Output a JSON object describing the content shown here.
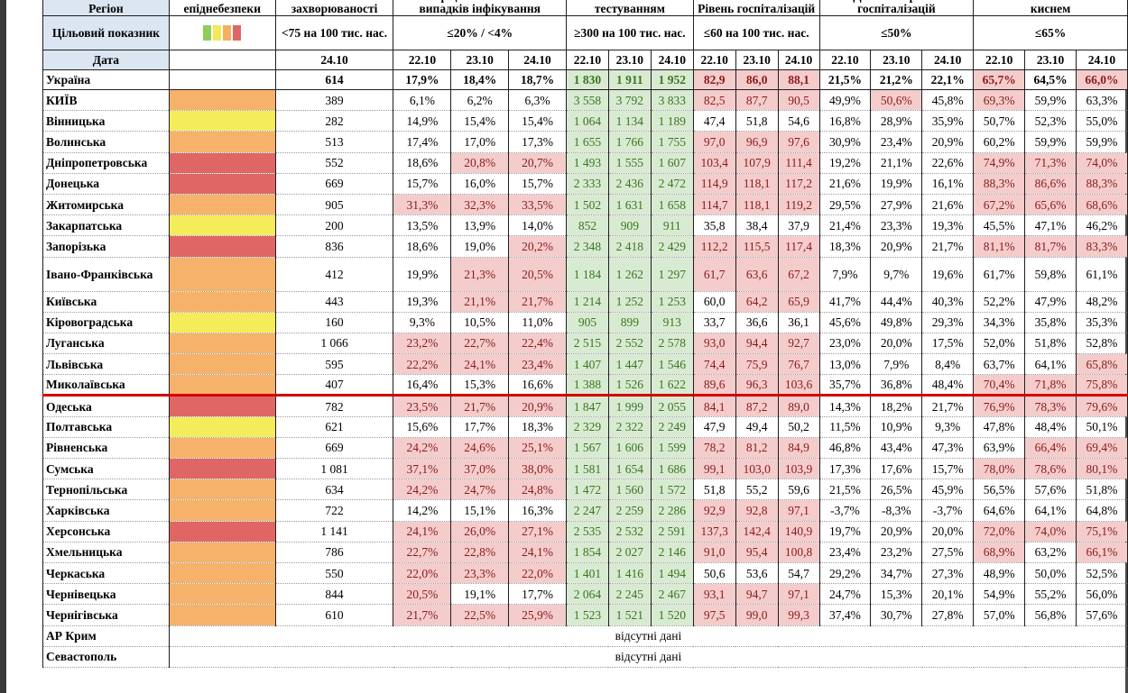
{
  "header": {
    "region_label": "Регіон",
    "level_label": "Рівень епіднебезпеки",
    "morbidity_label": "Рівень захворюваності",
    "detection_label": "Коефіцієнт виявлення випадків інфікування",
    "testing_label": "Охоплення тестуванням",
    "hosp_label": "Рівень госпіталізацій",
    "hosp_dyn_label": "Динаміка рівня госпіталізацій",
    "oxygen_label": "Завантаженість ліжок з киснем",
    "target_label": "Цільовий показник",
    "targets": {
      "morbidity": "<75 на 100 тис. нас.",
      "detection": "≤20% / <4%",
      "testing": "≥300 на 100 тис. нас.",
      "hosp": "≤60 на 100 тис. нас.",
      "hosp_dyn": "≤50%",
      "oxygen": "≤65%"
    },
    "date_label": "Дата",
    "dates": {
      "morbidity": "24.10",
      "detection": [
        "22.10",
        "23.10",
        "24.10"
      ],
      "testing": [
        "22.10",
        "23.10",
        "24.10"
      ],
      "hosp": [
        "22.10",
        "23.10",
        "24.10"
      ],
      "hosp_dyn": [
        "22.10",
        "23.10",
        "24.10"
      ],
      "oxygen": [
        "22.10",
        "23.10",
        "24.10"
      ]
    }
  },
  "legend_colors": [
    "#8fce5a",
    "#f3ea5a",
    "#f4b05e",
    "#e06666"
  ],
  "level_colors": {
    "yellow": "#f5ec5b",
    "orange": "#f6b26b",
    "red": "#e06666"
  },
  "ukraine": {
    "name": "Україна",
    "morbidity": "614",
    "detection": [
      "17,9%",
      "18,4%",
      "18,7%"
    ],
    "testing": [
      "1 830",
      "1 911",
      "1 952"
    ],
    "hosp": [
      "82,9",
      "86,0",
      "88,1"
    ],
    "hosp_dyn": [
      "21,5%",
      "21,2%",
      "22,1%"
    ],
    "oxygen": [
      "65,7%",
      "64,5%",
      "66,0%"
    ]
  },
  "regions": [
    {
      "name": "КИЇВ",
      "level": "orange",
      "morbidity": "389",
      "detection": [
        "6,1%",
        "6,2%",
        "6,3%"
      ],
      "testing": [
        "3 558",
        "3 792",
        "3 833"
      ],
      "hosp": [
        "82,5",
        "87,7",
        "90,5"
      ],
      "hosp_dyn": [
        "49,9%",
        "50,6%",
        "45,8%"
      ],
      "oxygen": [
        "69,3%",
        "59,9%",
        "63,3%"
      ]
    },
    {
      "name": "Вінницька",
      "level": "yellow",
      "morbidity": "282",
      "detection": [
        "14,9%",
        "15,4%",
        "15,4%"
      ],
      "testing": [
        "1 064",
        "1 134",
        "1 189"
      ],
      "hosp": [
        "47,4",
        "51,8",
        "54,6"
      ],
      "hosp_dyn": [
        "16,8%",
        "28,9%",
        "35,9%"
      ],
      "oxygen": [
        "50,7%",
        "52,3%",
        "55,0%"
      ]
    },
    {
      "name": "Волинська",
      "level": "orange",
      "morbidity": "513",
      "detection": [
        "17,4%",
        "17,0%",
        "17,3%"
      ],
      "testing": [
        "1 655",
        "1 766",
        "1 755"
      ],
      "hosp": [
        "97,0",
        "96,9",
        "97,6"
      ],
      "hosp_dyn": [
        "30,9%",
        "23,4%",
        "20,9%"
      ],
      "oxygen": [
        "60,2%",
        "59,9%",
        "59,9%"
      ]
    },
    {
      "name": "Дніпропетровська",
      "level": "red",
      "morbidity": "552",
      "detection": [
        "18,6%",
        "20,8%",
        "20,7%"
      ],
      "testing": [
        "1 493",
        "1 555",
        "1 607"
      ],
      "hosp": [
        "103,4",
        "107,9",
        "111,4"
      ],
      "hosp_dyn": [
        "19,2%",
        "21,1%",
        "22,6%"
      ],
      "oxygen": [
        "74,9%",
        "71,3%",
        "74,0%"
      ]
    },
    {
      "name": "Донецька",
      "level": "red",
      "morbidity": "669",
      "detection": [
        "15,7%",
        "16,0%",
        "15,7%"
      ],
      "testing": [
        "2 333",
        "2 436",
        "2 472"
      ],
      "hosp": [
        "114,9",
        "118,1",
        "117,2"
      ],
      "hosp_dyn": [
        "21,6%",
        "19,9%",
        "16,1%"
      ],
      "oxygen": [
        "88,3%",
        "86,6%",
        "88,3%"
      ]
    },
    {
      "name": "Житомирська",
      "level": "orange",
      "morbidity": "905",
      "detection": [
        "31,3%",
        "32,3%",
        "33,5%"
      ],
      "testing": [
        "1 502",
        "1 631",
        "1 658"
      ],
      "hosp": [
        "114,7",
        "118,1",
        "119,2"
      ],
      "hosp_dyn": [
        "29,5%",
        "27,9%",
        "21,6%"
      ],
      "oxygen": [
        "67,2%",
        "65,6%",
        "68,6%"
      ]
    },
    {
      "name": "Закарпатська",
      "level": "yellow",
      "morbidity": "200",
      "detection": [
        "13,5%",
        "13,9%",
        "14,0%"
      ],
      "testing": [
        "852",
        "909",
        "911"
      ],
      "hosp": [
        "35,8",
        "38,4",
        "37,9"
      ],
      "hosp_dyn": [
        "21,4%",
        "23,3%",
        "19,3%"
      ],
      "oxygen": [
        "45,5%",
        "47,1%",
        "46,2%"
      ]
    },
    {
      "name": "Запорізька",
      "level": "red",
      "morbidity": "836",
      "detection": [
        "18,6%",
        "19,0%",
        "20,2%"
      ],
      "testing": [
        "2 348",
        "2 418",
        "2 429"
      ],
      "hosp": [
        "112,2",
        "115,5",
        "117,4"
      ],
      "hosp_dyn": [
        "18,3%",
        "20,9%",
        "21,7%"
      ],
      "oxygen": [
        "81,1%",
        "81,7%",
        "83,3%"
      ]
    },
    {
      "name": "Івано-Франківська",
      "level": "orange",
      "morbidity": "412",
      "detection": [
        "19,9%",
        "21,3%",
        "20,5%"
      ],
      "testing": [
        "1 184",
        "1 262",
        "1 297"
      ],
      "hosp": [
        "61,7",
        "63,6",
        "67,2"
      ],
      "hosp_dyn": [
        "7,9%",
        "9,7%",
        "19,6%"
      ],
      "oxygen": [
        "61,7%",
        "59,8%",
        "61,1%"
      ]
    },
    {
      "name": "Київська",
      "level": "orange",
      "morbidity": "443",
      "detection": [
        "19,3%",
        "21,1%",
        "21,7%"
      ],
      "testing": [
        "1 214",
        "1 252",
        "1 253"
      ],
      "hosp": [
        "60,0",
        "64,2",
        "65,9"
      ],
      "hosp_dyn": [
        "41,7%",
        "44,4%",
        "40,3%"
      ],
      "oxygen": [
        "52,2%",
        "47,9%",
        "48,2%"
      ]
    },
    {
      "name": "Кіровоградська",
      "level": "yellow",
      "morbidity": "160",
      "detection": [
        "9,3%",
        "10,5%",
        "11,0%"
      ],
      "testing": [
        "905",
        "899",
        "913"
      ],
      "hosp": [
        "33,7",
        "36,6",
        "36,1"
      ],
      "hosp_dyn": [
        "45,6%",
        "49,8%",
        "29,3%"
      ],
      "oxygen": [
        "34,3%",
        "35,8%",
        "35,3%"
      ]
    },
    {
      "name": "Луганська",
      "level": "orange",
      "morbidity": "1 066",
      "detection": [
        "23,2%",
        "22,7%",
        "22,4%"
      ],
      "testing": [
        "2 515",
        "2 552",
        "2 578"
      ],
      "hosp": [
        "93,0",
        "94,4",
        "92,7"
      ],
      "hosp_dyn": [
        "23,0%",
        "20,0%",
        "17,5%"
      ],
      "oxygen": [
        "52,0%",
        "51,8%",
        "52,8%"
      ]
    },
    {
      "name": "Львівська",
      "level": "orange",
      "morbidity": "595",
      "detection": [
        "22,2%",
        "24,1%",
        "23,4%"
      ],
      "testing": [
        "1 407",
        "1 447",
        "1 546"
      ],
      "hosp": [
        "74,4",
        "75,9",
        "76,7"
      ],
      "hosp_dyn": [
        "13,0%",
        "7,9%",
        "8,4%"
      ],
      "oxygen": [
        "63,7%",
        "64,1%",
        "65,8%"
      ]
    },
    {
      "name": "Миколаївська",
      "level": "orange",
      "morbidity": "407",
      "detection": [
        "16,4%",
        "15,3%",
        "16,6%"
      ],
      "testing": [
        "1 388",
        "1 526",
        "1 622"
      ],
      "hosp": [
        "89,6",
        "96,3",
        "103,6"
      ],
      "hosp_dyn": [
        "35,7%",
        "36,8%",
        "48,4%"
      ],
      "oxygen": [
        "70,4%",
        "71,8%",
        "75,8%"
      ]
    },
    {
      "name": "Одеська",
      "level": "red",
      "morbidity": "782",
      "detection": [
        "23,5%",
        "21,7%",
        "20,9%"
      ],
      "testing": [
        "1 847",
        "1 999",
        "2 055"
      ],
      "hosp": [
        "84,1",
        "87,2",
        "89,0"
      ],
      "hosp_dyn": [
        "14,3%",
        "18,2%",
        "21,7%"
      ],
      "oxygen": [
        "76,9%",
        "78,3%",
        "79,6%"
      ]
    },
    {
      "name": "Полтавська",
      "level": "yellow",
      "morbidity": "621",
      "detection": [
        "15,6%",
        "17,7%",
        "18,3%"
      ],
      "testing": [
        "2 329",
        "2 322",
        "2 249"
      ],
      "hosp": [
        "47,9",
        "49,4",
        "50,2"
      ],
      "hosp_dyn": [
        "11,5%",
        "10,9%",
        "9,3%"
      ],
      "oxygen": [
        "47,8%",
        "48,4%",
        "50,1%"
      ]
    },
    {
      "name": "Рівненська",
      "level": "orange",
      "morbidity": "669",
      "detection": [
        "24,2%",
        "24,6%",
        "25,1%"
      ],
      "testing": [
        "1 567",
        "1 606",
        "1 599"
      ],
      "hosp": [
        "78,2",
        "81,2",
        "84,9"
      ],
      "hosp_dyn": [
        "46,8%",
        "43,4%",
        "47,3%"
      ],
      "oxygen": [
        "63,9%",
        "66,4%",
        "69,4%"
      ]
    },
    {
      "name": "Сумська",
      "level": "red",
      "morbidity": "1 081",
      "detection": [
        "37,1%",
        "37,0%",
        "38,0%"
      ],
      "testing": [
        "1 581",
        "1 654",
        "1 686"
      ],
      "hosp": [
        "99,1",
        "103,0",
        "103,9"
      ],
      "hosp_dyn": [
        "17,3%",
        "17,6%",
        "15,7%"
      ],
      "oxygen": [
        "78,0%",
        "78,6%",
        "80,1%"
      ]
    },
    {
      "name": "Тернопільська",
      "level": "orange",
      "morbidity": "634",
      "detection": [
        "24,2%",
        "24,7%",
        "24,8%"
      ],
      "testing": [
        "1 472",
        "1 560",
        "1 572"
      ],
      "hosp": [
        "51,8",
        "55,2",
        "59,6"
      ],
      "hosp_dyn": [
        "21,5%",
        "26,5%",
        "45,9%"
      ],
      "oxygen": [
        "56,5%",
        "57,6%",
        "51,8%"
      ]
    },
    {
      "name": "Харківська",
      "level": "orange",
      "morbidity": "722",
      "detection": [
        "14,2%",
        "15,1%",
        "16,3%"
      ],
      "testing": [
        "2 247",
        "2 259",
        "2 286"
      ],
      "hosp": [
        "92,9",
        "92,8",
        "97,1"
      ],
      "hosp_dyn": [
        "-3,7%",
        "-8,3%",
        "-3,7%"
      ],
      "oxygen": [
        "64,6%",
        "64,1%",
        "64,8%"
      ]
    },
    {
      "name": "Херсонська",
      "level": "red",
      "morbidity": "1 141",
      "detection": [
        "24,1%",
        "26,0%",
        "27,1%"
      ],
      "testing": [
        "2 535",
        "2 532",
        "2 591"
      ],
      "hosp": [
        "137,3",
        "142,4",
        "140,9"
      ],
      "hosp_dyn": [
        "19,7%",
        "20,9%",
        "20,0%"
      ],
      "oxygen": [
        "72,0%",
        "74,0%",
        "75,1%"
      ]
    },
    {
      "name": "Хмельницька",
      "level": "orange",
      "morbidity": "786",
      "detection": [
        "22,7%",
        "22,8%",
        "24,1%"
      ],
      "testing": [
        "1 854",
        "2 027",
        "2 146"
      ],
      "hosp": [
        "91,0",
        "95,4",
        "100,8"
      ],
      "hosp_dyn": [
        "23,4%",
        "23,2%",
        "27,5%"
      ],
      "oxygen": [
        "68,9%",
        "63,2%",
        "66,1%"
      ]
    },
    {
      "name": "Черкаська",
      "level": "orange",
      "morbidity": "550",
      "detection": [
        "22,0%",
        "23,3%",
        "22,0%"
      ],
      "testing": [
        "1 401",
        "1 416",
        "1 494"
      ],
      "hosp": [
        "50,6",
        "53,6",
        "54,7"
      ],
      "hosp_dyn": [
        "29,2%",
        "34,7%",
        "27,3%"
      ],
      "oxygen": [
        "48,9%",
        "50,0%",
        "52,5%"
      ]
    },
    {
      "name": "Чернівецька",
      "level": "orange",
      "morbidity": "844",
      "detection": [
        "20,5%",
        "19,1%",
        "17,7%"
      ],
      "testing": [
        "2 064",
        "2 245",
        "2 467"
      ],
      "hosp": [
        "93,1",
        "94,7",
        "97,1"
      ],
      "hosp_dyn": [
        "24,7%",
        "15,3%",
        "20,1%"
      ],
      "oxygen": [
        "54,9%",
        "55,2%",
        "56,0%"
      ]
    },
    {
      "name": "Чернігівська",
      "level": "orange",
      "morbidity": "610",
      "detection": [
        "21,7%",
        "22,5%",
        "25,9%"
      ],
      "testing": [
        "1 523",
        "1 521",
        "1 520"
      ],
      "hosp": [
        "97,5",
        "99,0",
        "99,3"
      ],
      "hosp_dyn": [
        "37,4%",
        "30,7%",
        "27,8%"
      ],
      "oxygen": [
        "57,0%",
        "56,8%",
        "57,6%"
      ]
    }
  ],
  "no_data_rows": [
    {
      "name": "АР Крим",
      "text": "відсутні дані"
    },
    {
      "name": "Севастополь",
      "text": "відсутні дані"
    }
  ]
}
